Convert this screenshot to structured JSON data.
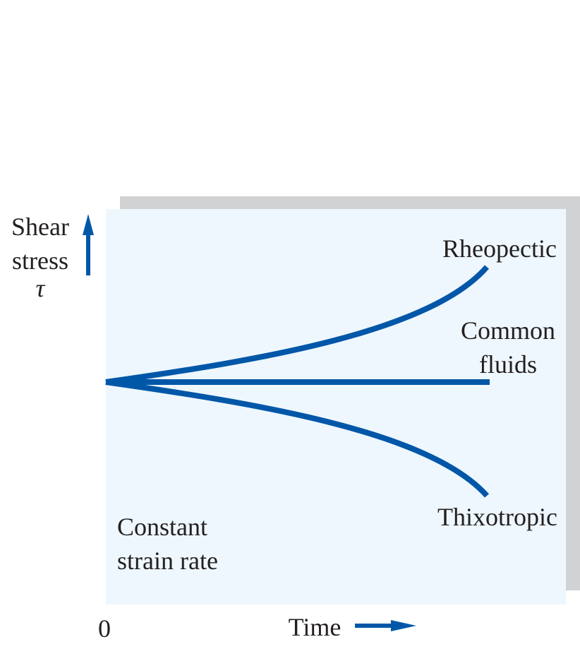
{
  "labels": {
    "y_axis_line1": "Shear",
    "y_axis_line2": "stress",
    "y_axis_symbol": "τ",
    "x_axis": "Time",
    "origin": "0",
    "rheopectic": "Rheopectic",
    "common_line1": "Common",
    "common_line2": "fluids",
    "thixotropic": "Thixotropic",
    "condition_line1": "Constant",
    "condition_line2": "strain rate"
  },
  "colors": {
    "curve": "#0057a8",
    "panel": "#eef7fd",
    "shadow": "#d1d2d4",
    "text": "#231f20"
  },
  "icons": {
    "y_axis_arrow": "arrow-up-icon",
    "x_axis_arrow": "arrow-right-icon"
  }
}
